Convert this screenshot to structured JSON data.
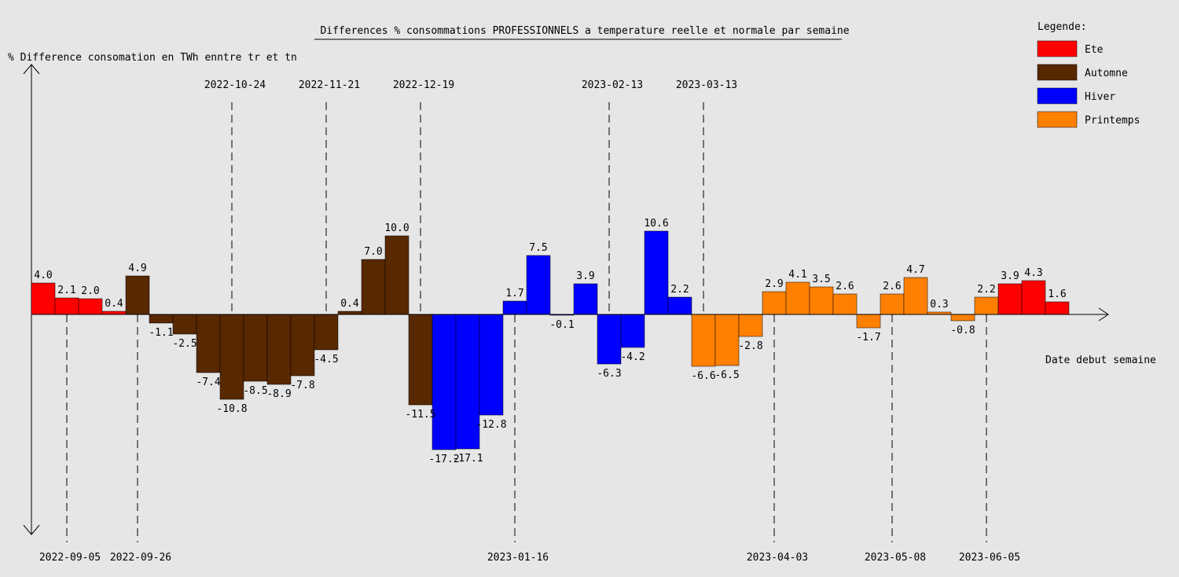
{
  "chart_data": {
    "type": "bar",
    "title": "Differences % consommations PROFESSIONNELS a temperature reelle et normale par semaine",
    "ylabel": "% Difference consomation en TWh enntre tr et tn",
    "xlabel": "Date debut semaine",
    "legend": {
      "title": "Legende:",
      "placement": "top-right",
      "entries": [
        {
          "key": "ete",
          "label": "Ete"
        },
        {
          "key": "automne",
          "label": "Automne"
        },
        {
          "key": "hiver",
          "label": "Hiver"
        },
        {
          "key": "printemps",
          "label": "Printemps"
        }
      ]
    },
    "colors": {
      "ete": "#ff0000",
      "automne": "#582800",
      "hiver": "#0000ff",
      "printemps": "#ff8000"
    },
    "values": [
      4.0,
      2.1,
      2.0,
      0.4,
      4.9,
      -1.1,
      -2.5,
      -7.4,
      -10.8,
      -8.5,
      -8.9,
      -7.8,
      -4.5,
      0.4,
      7.0,
      10.0,
      -11.5,
      -17.2,
      -17.1,
      -12.8,
      1.7,
      7.5,
      -0.1,
      3.9,
      -6.3,
      -4.2,
      10.6,
      2.2,
      -6.6,
      -6.5,
      -2.8,
      2.9,
      4.1,
      3.5,
      2.6,
      -1.7,
      2.6,
      4.7,
      0.3,
      -0.8,
      2.2,
      3.9,
      4.3,
      1.6
    ],
    "value_labels": [
      "4.0",
      "2.1",
      "2.0",
      "0.4",
      "4.9",
      "-1.1",
      "-2.5",
      "-7.4",
      "-10.8",
      "-8.5",
      "-8.9",
      "-7.8",
      "-4.5",
      "0.4",
      "7.0",
      "10.0",
      "-11.5",
      "-17.2",
      "-17.1",
      "-12.8",
      "1.7",
      "7.5",
      "-0.1",
      "3.9",
      "-6.3",
      "-4.2",
      "10.6",
      "2.2",
      "-6.6",
      "-6.5",
      "-2.8",
      "2.9",
      "4.1",
      "3.5",
      "2.6",
      "-1.7",
      "2.6",
      "4.7",
      "0.3",
      "-0.8",
      "2.2",
      "3.9",
      "4.3",
      "1.6"
    ],
    "seasons": [
      "ete",
      "ete",
      "ete",
      "ete",
      "automne",
      "automne",
      "automne",
      "automne",
      "automne",
      "automne",
      "automne",
      "automne",
      "automne",
      "automne",
      "automne",
      "automne",
      "automne",
      "hiver",
      "hiver",
      "hiver",
      "hiver",
      "hiver",
      "hiver",
      "hiver",
      "hiver",
      "hiver",
      "hiver",
      "hiver",
      "printemps",
      "printemps",
      "printemps",
      "printemps",
      "printemps",
      "printemps",
      "printemps",
      "printemps",
      "printemps",
      "printemps",
      "printemps",
      "printemps",
      "printemps",
      "ete",
      "ete",
      "ete"
    ],
    "date_markers": [
      {
        "label": "2022-09-05",
        "week": 1.5,
        "position": "bottom"
      },
      {
        "label": "2022-09-26",
        "week": 4.5,
        "position": "bottom"
      },
      {
        "label": "2022-10-24",
        "week": 8.5,
        "position": "top"
      },
      {
        "label": "2022-11-21",
        "week": 12.5,
        "position": "top"
      },
      {
        "label": "2022-12-19",
        "week": 16.5,
        "position": "top"
      },
      {
        "label": "2023-01-16",
        "week": 20.5,
        "position": "bottom"
      },
      {
        "label": "2023-02-13",
        "week": 24.5,
        "position": "top"
      },
      {
        "label": "2023-03-13",
        "week": 28.5,
        "position": "top"
      },
      {
        "label": "2023-04-03",
        "week": 31.5,
        "position": "bottom"
      },
      {
        "label": "2023-05-08",
        "week": 36.5,
        "position": "bottom"
      },
      {
        "label": "2023-06-05",
        "week": 40.5,
        "position": "bottom"
      }
    ],
    "ylim": [
      -18.6,
      20.8
    ],
    "grid": false
  }
}
